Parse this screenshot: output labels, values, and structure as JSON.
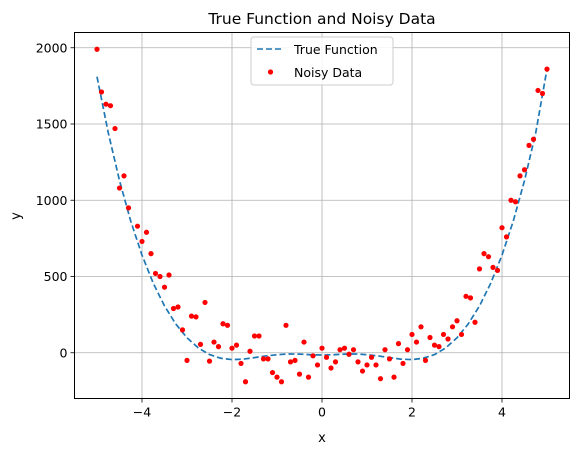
{
  "chart_data": {
    "type": "scatter",
    "title": "True Function and Noisy Data",
    "xlabel": "x",
    "ylabel": "y",
    "xlim": [
      -5.5,
      5.5
    ],
    "ylim": [
      -300,
      2100
    ],
    "grid": true,
    "legend_position": "top-center",
    "x_ticks": [
      -4,
      -2,
      0,
      2,
      4
    ],
    "x_tick_labels": [
      "−4",
      "−2",
      "0",
      "2",
      "4"
    ],
    "y_ticks": [
      0,
      500,
      1000,
      1500,
      2000
    ],
    "y_tick_labels": [
      "0",
      "500",
      "1000",
      "1500",
      "2000"
    ],
    "series": [
      {
        "name": "True Function",
        "style": "dashed-line",
        "color": "#1f77b4",
        "x": [
          -5.0,
          -4.75,
          -4.5,
          -4.25,
          -4.0,
          -3.75,
          -3.5,
          -3.25,
          -3.0,
          -2.75,
          -2.5,
          -2.25,
          -2.0,
          -1.75,
          -1.5,
          -1.25,
          -1.0,
          -0.75,
          -0.5,
          -0.25,
          0.0,
          0.25,
          0.5,
          0.75,
          1.0,
          1.25,
          1.5,
          1.75,
          2.0,
          2.25,
          2.5,
          2.75,
          3.0,
          3.25,
          3.5,
          3.75,
          4.0,
          4.25,
          4.5,
          4.75,
          5.0
        ],
        "y": [
          1810,
          1443,
          1129,
          863,
          640,
          456,
          307,
          189,
          98,
          32,
          -12,
          -36,
          -45,
          -42,
          -32,
          -21,
          -13,
          -8,
          -9,
          -13,
          -15,
          -13,
          -9,
          -8,
          -13,
          -21,
          -32,
          -42,
          -45,
          -36,
          -12,
          32,
          98,
          189,
          307,
          456,
          640,
          863,
          1129,
          1443,
          1860
        ]
      },
      {
        "name": "Noisy Data",
        "style": "points",
        "color": "#ff0000",
        "x": [
          -5.0,
          -4.9,
          -4.8,
          -4.7,
          -4.6,
          -4.5,
          -4.4,
          -4.3,
          -4.1,
          -4.0,
          -3.9,
          -3.8,
          -3.7,
          -3.6,
          -3.5,
          -3.4,
          -3.3,
          -3.2,
          -3.1,
          -3.0,
          -2.9,
          -2.8,
          -2.7,
          -2.6,
          -2.5,
          -2.4,
          -2.3,
          -2.2,
          -2.1,
          -2.0,
          -1.9,
          -1.8,
          -1.7,
          -1.6,
          -1.5,
          -1.4,
          -1.3,
          -1.2,
          -1.1,
          -1.0,
          -0.9,
          -0.8,
          -0.7,
          -0.6,
          -0.5,
          -0.4,
          -0.3,
          -0.2,
          -0.1,
          0.0,
          0.1,
          0.2,
          0.3,
          0.4,
          0.5,
          0.6,
          0.7,
          0.8,
          0.9,
          1.0,
          1.1,
          1.2,
          1.3,
          1.4,
          1.5,
          1.6,
          1.7,
          1.8,
          1.9,
          2.0,
          2.1,
          2.2,
          2.3,
          2.4,
          2.5,
          2.6,
          2.7,
          2.8,
          2.9,
          3.0,
          3.1,
          3.2,
          3.3,
          3.4,
          3.5,
          3.6,
          3.7,
          3.8,
          3.9,
          4.0,
          4.1,
          4.2,
          4.3,
          4.4,
          4.5,
          4.6,
          4.7,
          4.8,
          4.9,
          5.0
        ],
        "y": [
          1990,
          1710,
          1630,
          1620,
          1470,
          1080,
          1160,
          950,
          830,
          730,
          790,
          650,
          520,
          500,
          430,
          510,
          290,
          300,
          150,
          -50,
          240,
          235,
          55,
          330,
          -55,
          70,
          40,
          190,
          180,
          30,
          50,
          -70,
          -190,
          10,
          110,
          110,
          -40,
          -40,
          -130,
          -160,
          -190,
          180,
          -60,
          -50,
          -140,
          70,
          -160,
          -20,
          -80,
          30,
          -30,
          -100,
          -60,
          20,
          30,
          -10,
          20,
          -60,
          -120,
          -80,
          -30,
          -80,
          -170,
          20,
          -40,
          -160,
          60,
          -70,
          20,
          120,
          70,
          170,
          -50,
          100,
          50,
          40,
          120,
          90,
          170,
          210,
          120,
          370,
          360,
          200,
          550,
          650,
          630,
          560,
          540,
          820,
          760,
          1000,
          990,
          1160,
          1200,
          1360,
          1400,
          1720,
          1700,
          1860
        ]
      }
    ]
  }
}
